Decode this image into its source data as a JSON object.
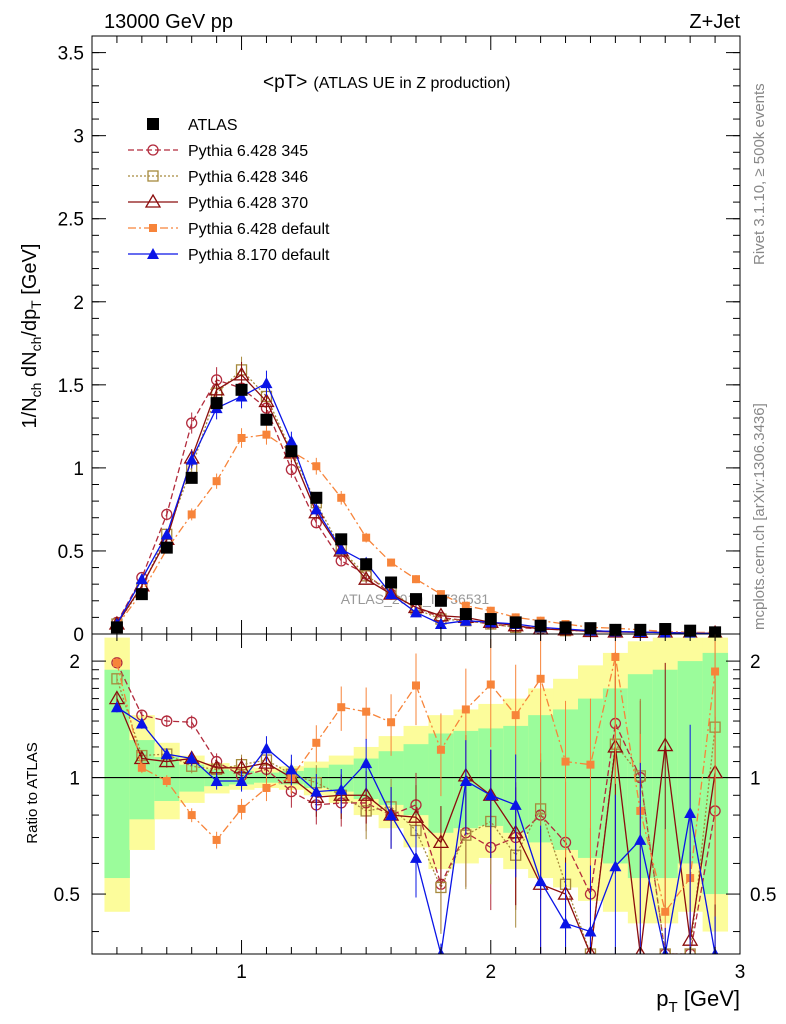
{
  "header": {
    "left": "13000 GeV pp",
    "right": "Z+Jet"
  },
  "side": {
    "rivet": "Rivet 3.1.10, ≥ 500k events",
    "mcplots": "mcplots.cern.ch [arXiv:1306.3436]"
  },
  "colors": {
    "atlas": "#000000",
    "p345": "#b22a3c",
    "p346": "#a68a3d",
    "p370": "#8b0d0d",
    "p6def": "#f7843a",
    "p8def": "#0a14e6",
    "band_green": "#9bfc9b",
    "band_yellow": "#fcfc9b"
  },
  "chart_data": [
    {
      "type": "line",
      "title": "<pT>",
      "subtitle": "(ATLAS UE in Z production)",
      "watermark": "ATLAS_2019_I1736531",
      "ylabel": "1/N_ch dN_ch/dp_T [GeV]",
      "xlabel": "",
      "xlim": [
        0.4,
        3.0
      ],
      "ylim": [
        0,
        3.6
      ],
      "yticks": [
        "0",
        "0.5",
        "1",
        "1.5",
        "2",
        "2.5",
        "3",
        "3.5"
      ],
      "x": [
        0.5,
        0.6,
        0.7,
        0.8,
        0.9,
        1.0,
        1.1,
        1.2,
        1.3,
        1.4,
        1.5,
        1.6,
        1.7,
        1.8,
        1.9,
        2.0,
        2.1,
        2.2,
        2.3,
        2.4,
        2.5,
        2.6,
        2.7,
        2.8,
        2.9
      ],
      "legend_position": "top-left",
      "series": [
        {
          "name": "ATLAS",
          "key": "atlas",
          "marker": "square-filled",
          "values": [
            0.04,
            0.24,
            0.52,
            0.94,
            1.39,
            1.47,
            1.29,
            1.1,
            0.82,
            0.57,
            0.42,
            0.31,
            0.21,
            0.2,
            0.12,
            0.09,
            0.07,
            0.05,
            0.04,
            0.035,
            0.025,
            0.025,
            0.03,
            0.02,
            0.01
          ]
        },
        {
          "name": "Pythia 6.428 345",
          "key": "p345",
          "marker": "circle-open",
          "dash": "6,3",
          "values": [
            0.07,
            0.34,
            0.72,
            1.27,
            1.53,
            1.48,
            1.36,
            0.99,
            0.67,
            0.44,
            0.36,
            0.24,
            0.16,
            0.1,
            0.08,
            0.06,
            0.04,
            0.03,
            0.025,
            0.02,
            0.015,
            0.01,
            0.01,
            0.005,
            0.005
          ]
        },
        {
          "name": "Pythia 6.428 346",
          "key": "p346",
          "marker": "square-open",
          "dash": "2,2",
          "values": [
            0.06,
            0.28,
            0.6,
            1.0,
            1.45,
            1.59,
            1.43,
            1.1,
            0.79,
            0.51,
            0.35,
            0.26,
            0.15,
            0.09,
            0.08,
            0.06,
            0.04,
            0.04,
            0.02,
            0.02,
            0.015,
            0.01,
            0.01,
            0.005,
            0.005
          ]
        },
        {
          "name": "Pythia 6.428 370",
          "key": "p370",
          "marker": "triangle-open",
          "dash": "",
          "values": [
            0.06,
            0.29,
            0.57,
            1.06,
            1.47,
            1.56,
            1.4,
            1.09,
            0.73,
            0.5,
            0.33,
            0.24,
            0.16,
            0.11,
            0.1,
            0.07,
            0.05,
            0.03,
            0.025,
            0.015,
            0.012,
            0.01,
            0.01,
            0.005,
            0.005
          ]
        },
        {
          "name": "Pythia 6.428 default",
          "key": "p6def",
          "marker": "square-filled-small",
          "dash": "8,3,2,3",
          "values": [
            0.05,
            0.25,
            0.51,
            0.72,
            0.92,
            1.18,
            1.2,
            1.1,
            1.01,
            0.82,
            0.58,
            0.43,
            0.33,
            0.24,
            0.17,
            0.14,
            0.1,
            0.08,
            0.06,
            0.04,
            0.035,
            0.025,
            0.015,
            0.01,
            0.01
          ]
        },
        {
          "name": "Pythia 8.170 default",
          "key": "p8def",
          "marker": "triangle-filled",
          "dash": "",
          "values": [
            0.06,
            0.33,
            0.6,
            1.05,
            1.36,
            1.43,
            1.51,
            1.16,
            0.75,
            0.51,
            0.43,
            0.24,
            0.13,
            0.06,
            0.08,
            0.07,
            0.06,
            0.04,
            0.03,
            0.02,
            0.015,
            0.012,
            0.008,
            0.005,
            0.003
          ]
        }
      ]
    },
    {
      "type": "line",
      "ylabel": "Ratio to ATLAS",
      "xlabel": "p_T [GeV]",
      "log_y": true,
      "ylim": [
        0.35,
        2.35
      ],
      "xlim": [
        0.4,
        3.0
      ],
      "yticks": [
        "0.5",
        "1",
        "2"
      ],
      "xticks": [
        "1",
        "2",
        "3"
      ],
      "x": [
        0.5,
        0.6,
        0.7,
        0.8,
        0.9,
        1.0,
        1.1,
        1.2,
        1.3,
        1.4,
        1.5,
        1.6,
        1.7,
        1.8,
        1.9,
        2.0,
        2.1,
        2.2,
        2.3,
        2.4,
        2.5,
        2.6,
        2.7,
        2.8,
        2.9
      ],
      "band_green": [
        0.55,
        0.78,
        0.87,
        0.92,
        0.95,
        0.96,
        0.97,
        0.96,
        0.94,
        0.92,
        0.88,
        0.85,
        0.8,
        0.72,
        0.74,
        0.75,
        0.72,
        0.68,
        0.65,
        0.62,
        0.6,
        0.55,
        0.55,
        0.6,
        0.5
      ],
      "band_green_hi": [
        1.9,
        1.25,
        1.13,
        1.08,
        1.05,
        1.04,
        1.03,
        1.04,
        1.06,
        1.08,
        1.12,
        1.17,
        1.22,
        1.3,
        1.32,
        1.34,
        1.36,
        1.45,
        1.5,
        1.6,
        1.7,
        1.85,
        1.9,
        2.0,
        2.1
      ],
      "band_yellow_lo": [
        0.45,
        0.65,
        0.78,
        0.86,
        0.91,
        0.93,
        0.94,
        0.93,
        0.9,
        0.86,
        0.8,
        0.74,
        0.66,
        0.58,
        0.6,
        0.62,
        0.58,
        0.55,
        0.52,
        0.48,
        0.45,
        0.42,
        0.42,
        0.45,
        0.4
      ],
      "band_yellow_hi": [
        2.3,
        1.45,
        1.23,
        1.14,
        1.09,
        1.07,
        1.06,
        1.07,
        1.1,
        1.14,
        1.2,
        1.28,
        1.36,
        1.45,
        1.5,
        1.55,
        1.6,
        1.7,
        1.8,
        1.95,
        2.1,
        2.25,
        2.3,
        2.3,
        2.3
      ],
      "series": [
        {
          "key": "p345",
          "values": [
            1.98,
            1.45,
            1.4,
            1.39,
            1.1,
            1.01,
            1.05,
            0.92,
            0.85,
            0.86,
            0.86,
            0.8,
            0.85,
            0.53,
            0.72,
            0.66,
            0.7,
            0.8,
            0.68,
            0.5,
            1.38,
            1.0,
            0.25,
            0.25,
            0.82
          ]
        },
        {
          "key": "p346",
          "values": [
            1.8,
            1.14,
            1.15,
            1.07,
            1.05,
            1.08,
            1.11,
            1.02,
            0.97,
            0.9,
            0.82,
            0.84,
            0.73,
            0.52,
            0.71,
            0.77,
            0.63,
            0.83,
            0.53,
            0.33,
            1.22,
            1.01,
            0.25,
            0.25,
            1.35
          ]
        },
        {
          "key": "p370",
          "values": [
            1.6,
            1.12,
            1.1,
            1.12,
            1.06,
            1.06,
            1.09,
            1.0,
            0.89,
            0.9,
            0.9,
            0.8,
            0.79,
            0.68,
            1.01,
            0.9,
            0.72,
            0.53,
            0.5,
            0.33,
            1.2,
            0.25,
            1.21,
            0.38,
            1.03
          ]
        },
        {
          "key": "p6def",
          "values": [
            1.98,
            1.06,
            0.98,
            0.8,
            0.69,
            0.83,
            0.94,
            1.0,
            1.23,
            1.52,
            1.48,
            1.39,
            1.73,
            1.18,
            1.5,
            1.74,
            1.45,
            1.8,
            1.1,
            1.08,
            2.05,
            0.82,
            0.45,
            0.55,
            1.88
          ]
        },
        {
          "key": "p8def",
          "values": [
            1.52,
            1.38,
            1.15,
            1.12,
            0.98,
            0.98,
            1.19,
            1.05,
            0.92,
            0.93,
            1.09,
            0.8,
            0.62,
            0.3,
            0.98,
            0.9,
            0.85,
            0.54,
            0.42,
            0.4,
            0.59,
            0.69,
            0.25,
            0.81,
            0.25
          ]
        }
      ]
    }
  ]
}
